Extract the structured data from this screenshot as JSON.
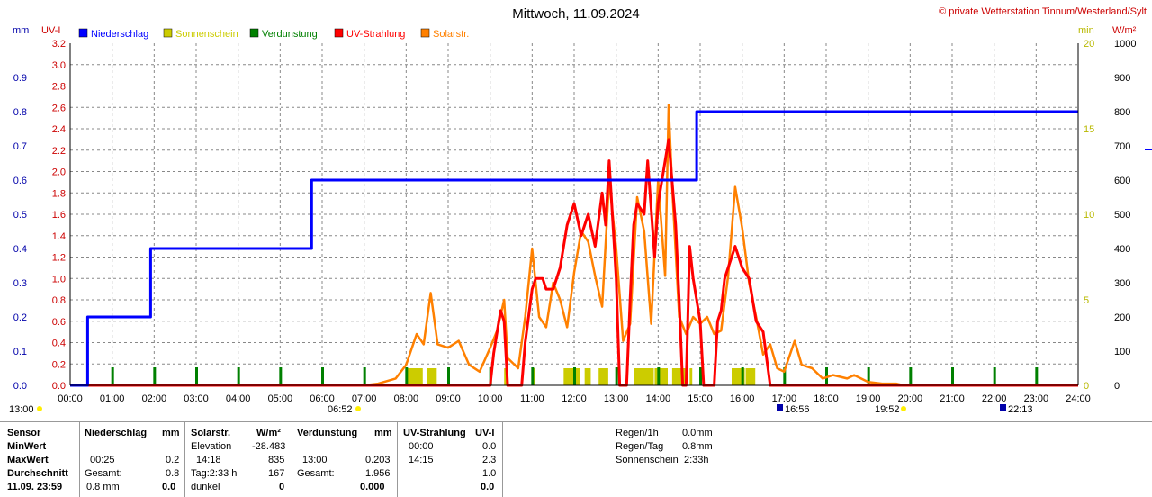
{
  "header": {
    "title": "Mittwoch, 11.09.2024",
    "copyright": "© private Wetterstation Tinnum/Westerland/Sylt"
  },
  "axes": {
    "left_unit_mm": "mm",
    "left_unit_uvi": "UV-I",
    "right_unit_min": "min",
    "right_unit_wm2": "W/m²",
    "mm_ticks": [
      "0.0",
      "0.1",
      "0.2",
      "0.3",
      "0.4",
      "0.5",
      "0.6",
      "0.7",
      "0.8",
      "0.9"
    ],
    "uvi_ticks": [
      "0.0",
      "0.2",
      "0.4",
      "0.6",
      "0.8",
      "1.0",
      "1.2",
      "1.4",
      "1.6",
      "1.8",
      "2.0",
      "2.2",
      "2.4",
      "2.6",
      "2.8",
      "3.0",
      "3.2"
    ],
    "min_ticks": [
      "0",
      "5",
      "10",
      "15",
      "20"
    ],
    "wm2_ticks": [
      "0",
      "100",
      "200",
      "300",
      "400",
      "500",
      "600",
      "700",
      "800",
      "900",
      "1000"
    ],
    "time_ticks": [
      "00:00",
      "01:00",
      "02:00",
      "03:00",
      "04:00",
      "05:00",
      "06:00",
      "07:00",
      "08:00",
      "09:00",
      "10:00",
      "11:00",
      "12:00",
      "13:00",
      "14:00",
      "15:00",
      "16:00",
      "17:00",
      "18:00",
      "19:00",
      "20:00",
      "21:00",
      "22:00",
      "23:00",
      "24:00"
    ]
  },
  "legend": [
    {
      "label": "Niederschlag",
      "color": "#0000ff"
    },
    {
      "label": "Sonnenschein",
      "color": "#cccc00"
    },
    {
      "label": "Verdunstung",
      "color": "#008000"
    },
    {
      "label": "UV-Strahlung",
      "color": "#ff0000"
    },
    {
      "label": "Solarstr.",
      "color": "#ff8000"
    }
  ],
  "events": {
    "left_time": "13:00",
    "sunrise": "06:52",
    "moon1": "16:56",
    "sunset": "19:52",
    "moon2": "22:13"
  },
  "chart_data": {
    "type": "line",
    "x_range": [
      "00:00",
      "24:00"
    ],
    "grid": true,
    "legend_placement": "top-left",
    "series": [
      {
        "name": "Niederschlag",
        "unit": "mm",
        "color": "#0000ff",
        "step": true,
        "points": [
          [
            "00:00",
            0.0
          ],
          [
            "00:25",
            0.0
          ],
          [
            "00:25",
            0.2
          ],
          [
            "01:55",
            0.2
          ],
          [
            "01:55",
            0.4
          ],
          [
            "05:45",
            0.4
          ],
          [
            "05:45",
            0.6
          ],
          [
            "14:55",
            0.6
          ],
          [
            "14:55",
            0.8
          ],
          [
            "24:00",
            0.8
          ]
        ]
      },
      {
        "name": "UV-Strahlung",
        "unit": "UV-I",
        "color": "#ff0000",
        "points": [
          [
            "00:00",
            0.0
          ],
          [
            "10:00",
            0.0
          ],
          [
            "10:05",
            0.3
          ],
          [
            "10:10",
            0.5
          ],
          [
            "10:15",
            0.7
          ],
          [
            "10:20",
            0.6
          ],
          [
            "10:25",
            0.0
          ],
          [
            "10:45",
            0.0
          ],
          [
            "10:50",
            0.4
          ],
          [
            "11:00",
            0.9
          ],
          [
            "11:05",
            1.0
          ],
          [
            "11:15",
            1.0
          ],
          [
            "11:20",
            0.9
          ],
          [
            "11:30",
            0.9
          ],
          [
            "11:40",
            1.1
          ],
          [
            "11:50",
            1.5
          ],
          [
            "12:00",
            1.7
          ],
          [
            "12:10",
            1.4
          ],
          [
            "12:20",
            1.6
          ],
          [
            "12:30",
            1.3
          ],
          [
            "12:40",
            1.8
          ],
          [
            "12:45",
            1.5
          ],
          [
            "12:50",
            2.1
          ],
          [
            "13:00",
            1.0
          ],
          [
            "13:05",
            0.0
          ],
          [
            "13:15",
            0.0
          ],
          [
            "13:20",
            0.8
          ],
          [
            "13:25",
            1.5
          ],
          [
            "13:30",
            1.7
          ],
          [
            "13:40",
            1.6
          ],
          [
            "13:45",
            2.1
          ],
          [
            "13:55",
            1.2
          ],
          [
            "14:00",
            1.7
          ],
          [
            "14:05",
            1.9
          ],
          [
            "14:15",
            2.3
          ],
          [
            "14:25",
            1.5
          ],
          [
            "14:30",
            0.8
          ],
          [
            "14:35",
            0.0
          ],
          [
            "14:40",
            0.0
          ],
          [
            "14:45",
            1.3
          ],
          [
            "14:50",
            1.0
          ],
          [
            "15:00",
            0.6
          ],
          [
            "15:05",
            0.0
          ],
          [
            "15:20",
            0.0
          ],
          [
            "15:25",
            0.6
          ],
          [
            "15:30",
            0.7
          ],
          [
            "15:35",
            1.0
          ],
          [
            "15:40",
            1.1
          ],
          [
            "15:50",
            1.3
          ],
          [
            "16:00",
            1.1
          ],
          [
            "16:10",
            1.0
          ],
          [
            "16:20",
            0.6
          ],
          [
            "16:30",
            0.5
          ],
          [
            "16:40",
            0.0
          ],
          [
            "24:00",
            0.0
          ]
        ]
      },
      {
        "name": "Solarstr.",
        "unit": "W/m²",
        "color": "#ff8000",
        "points": [
          [
            "00:00",
            0
          ],
          [
            "07:00",
            0
          ],
          [
            "07:20",
            5
          ],
          [
            "07:45",
            20
          ],
          [
            "08:00",
            60
          ],
          [
            "08:15",
            150
          ],
          [
            "08:25",
            120
          ],
          [
            "08:35",
            270
          ],
          [
            "08:45",
            120
          ],
          [
            "09:00",
            110
          ],
          [
            "09:15",
            130
          ],
          [
            "09:30",
            60
          ],
          [
            "09:45",
            40
          ],
          [
            "10:00",
            110
          ],
          [
            "10:10",
            160
          ],
          [
            "10:20",
            250
          ],
          [
            "10:25",
            80
          ],
          [
            "10:40",
            50
          ],
          [
            "10:50",
            200
          ],
          [
            "11:00",
            400
          ],
          [
            "11:10",
            200
          ],
          [
            "11:20",
            170
          ],
          [
            "11:30",
            300
          ],
          [
            "11:40",
            250
          ],
          [
            "11:50",
            170
          ],
          [
            "12:00",
            330
          ],
          [
            "12:10",
            450
          ],
          [
            "12:20",
            420
          ],
          [
            "12:30",
            320
          ],
          [
            "12:40",
            230
          ],
          [
            "12:50",
            600
          ],
          [
            "13:00",
            400
          ],
          [
            "13:10",
            130
          ],
          [
            "13:20",
            180
          ],
          [
            "13:30",
            550
          ],
          [
            "13:40",
            450
          ],
          [
            "13:50",
            180
          ],
          [
            "14:00",
            600
          ],
          [
            "14:10",
            320
          ],
          [
            "14:15",
            820
          ],
          [
            "14:20",
            580
          ],
          [
            "14:30",
            200
          ],
          [
            "14:40",
            150
          ],
          [
            "14:50",
            200
          ],
          [
            "15:00",
            180
          ],
          [
            "15:10",
            200
          ],
          [
            "15:20",
            150
          ],
          [
            "15:30",
            160
          ],
          [
            "15:40",
            320
          ],
          [
            "15:50",
            580
          ],
          [
            "16:00",
            460
          ],
          [
            "16:10",
            300
          ],
          [
            "16:20",
            200
          ],
          [
            "16:30",
            90
          ],
          [
            "16:40",
            120
          ],
          [
            "16:50",
            50
          ],
          [
            "17:00",
            40
          ],
          [
            "17:15",
            130
          ],
          [
            "17:25",
            60
          ],
          [
            "17:40",
            50
          ],
          [
            "17:55",
            20
          ],
          [
            "18:10",
            30
          ],
          [
            "18:30",
            20
          ],
          [
            "18:40",
            30
          ],
          [
            "19:00",
            10
          ],
          [
            "19:20",
            5
          ],
          [
            "19:40",
            5
          ],
          [
            "19:50",
            0
          ],
          [
            "24:00",
            0
          ]
        ]
      }
    ],
    "sunshine_blocks_min": [
      [
        "08:00",
        "08:25"
      ],
      [
        "08:30",
        "08:45"
      ],
      [
        "10:20",
        "10:25"
      ],
      [
        "11:00",
        "11:05"
      ],
      [
        "11:45",
        "12:10"
      ],
      [
        "12:15",
        "12:25"
      ],
      [
        "12:35",
        "12:50"
      ],
      [
        "13:25",
        "13:55"
      ],
      [
        "13:55",
        "14:15"
      ],
      [
        "14:20",
        "14:40"
      ],
      [
        "14:45",
        "14:50"
      ],
      [
        "15:45",
        "16:05"
      ],
      [
        "16:05",
        "16:20"
      ]
    ],
    "evaporation_marks_mm": [
      "01:00",
      "02:00",
      "03:00",
      "04:00",
      "05:00",
      "06:00",
      "07:00",
      "08:00",
      "09:00",
      "10:00",
      "11:00",
      "12:00",
      "13:00",
      "14:00",
      "15:00",
      "16:00",
      "17:00",
      "18:00",
      "19:00",
      "20:00",
      "21:00",
      "22:00",
      "23:00"
    ]
  },
  "stats": {
    "col1": {
      "h": "Sensor",
      "r1": "MinWert",
      "r2": "MaxWert",
      "r3": "Durchschnitt",
      "r4": "11.09. 23:59"
    },
    "niederschlag": {
      "h": "Niederschlag",
      "unit": "mm",
      "r2_time": "00:25",
      "r2_val": "0.2",
      "r3_label": "Gesamt:",
      "r3_val": "0.8",
      "r4_label": "0.8 mm",
      "r4_val": "0.0"
    },
    "solar": {
      "h": "Solarstr.",
      "unit": "W/m²",
      "r1_label": "Elevation",
      "r1_val": "-28.483",
      "r2_time": "14:18",
      "r2_val": "835",
      "r3_label": "Tag:2:33 h",
      "r3_val": "167",
      "r4_label": "dunkel",
      "r4_val": "0"
    },
    "verdunstung": {
      "h": "Verdunstung",
      "unit": "mm",
      "r2_time": "13:00",
      "r2_val": "0.203",
      "r3_label": "Gesamt:",
      "r3_val": "1.956",
      "r4_val": "0.000"
    },
    "uv": {
      "h": "UV-Strahlung",
      "unit": "UV-I",
      "r1_time": "00:00",
      "r1_val": "0.0",
      "r2_time": "14:15",
      "r2_val": "2.3",
      "r3_val": "1.0",
      "r4_val": "0.0"
    },
    "summary": {
      "l1": "Regen/1h",
      "v1": "0.0mm",
      "l2": "Regen/Tag",
      "v2": "0.8mm",
      "l3": "Sonnenschein",
      "v3": "2:33h"
    }
  }
}
